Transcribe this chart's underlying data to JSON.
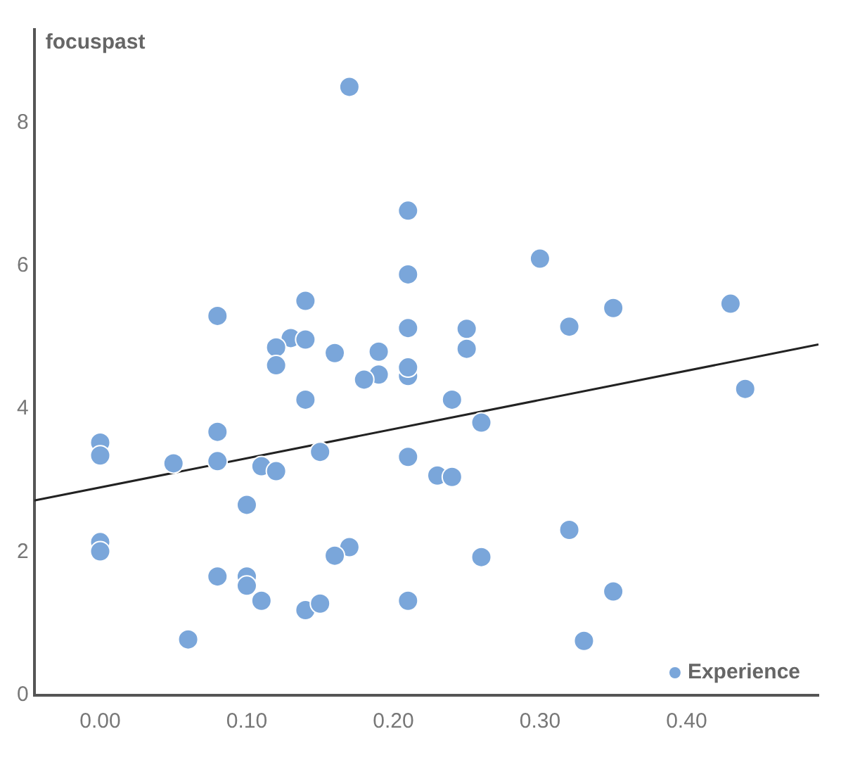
{
  "chart_data": {
    "type": "scatter",
    "ylabel": "focuspast",
    "xlim": [
      -0.045,
      0.49
    ],
    "ylim": [
      0,
      9.3
    ],
    "xticks": [
      {
        "value": 0,
        "label": "0.00"
      },
      {
        "value": 0.1,
        "label": "0.10"
      },
      {
        "value": 0.2,
        "label": "0.20"
      },
      {
        "value": 0.3,
        "label": "0.30"
      },
      {
        "value": 0.4,
        "label": "0.40"
      }
    ],
    "yticks": [
      0,
      2,
      4,
      6,
      8
    ],
    "grid": false,
    "legend": "bottom right",
    "marker": "circle",
    "series": [
      {
        "name": "Experience",
        "color": "#7aa6da",
        "x": [
          0.17,
          0.21,
          0.21,
          0.3,
          0.08,
          0.14,
          0.13,
          0.12,
          0.14,
          0.12,
          0.16,
          0.19,
          0.21,
          0.25,
          0.25,
          0.32,
          0.35,
          0.43,
          0.44,
          0.21,
          0.21,
          0.19,
          0.18,
          0.14,
          0.24,
          0.26,
          0.0,
          0.0,
          0.08,
          0.05,
          0.08,
          0.15,
          0.11,
          0.12,
          0.21,
          0.23,
          0.24,
          0.1,
          0.0,
          0.0,
          0.32,
          0.17,
          0.16,
          0.26,
          0.08,
          0.1,
          0.1,
          0.11,
          0.14,
          0.15,
          0.21,
          0.35,
          0.06,
          0.33
        ],
        "values": [
          8.5,
          6.77,
          5.88,
          6.1,
          5.3,
          5.51,
          4.99,
          4.86,
          4.97,
          4.61,
          4.78,
          4.8,
          5.13,
          5.12,
          4.84,
          5.15,
          5.41,
          5.47,
          4.28,
          4.46,
          4.58,
          4.48,
          4.41,
          4.13,
          4.13,
          3.81,
          3.53,
          3.35,
          3.68,
          3.24,
          3.27,
          3.4,
          3.2,
          3.13,
          3.33,
          3.07,
          3.05,
          2.66,
          2.14,
          2.01,
          2.31,
          2.07,
          1.95,
          1.93,
          1.66,
          1.66,
          1.53,
          1.32,
          1.19,
          1.28,
          1.32,
          1.45,
          0.78,
          0.76
        ]
      },
      {
        "type": "line",
        "color": "#222222",
        "marker": "none",
        "x": [
          -0.045,
          0.49
        ],
        "values": [
          2.72,
          4.9
        ]
      }
    ]
  }
}
